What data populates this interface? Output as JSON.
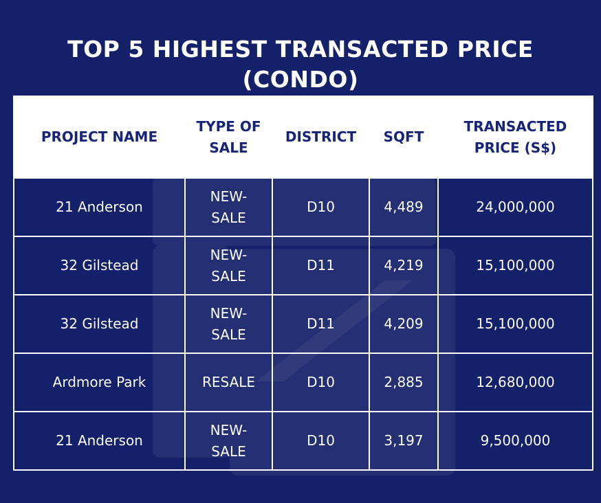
{
  "title": {
    "line1": "TOP 5 HIGHEST TRANSACTED PRICE",
    "line2": "(CONDO)"
  },
  "table": {
    "headers": {
      "project_name": "PROJECT NAME",
      "type_of_sale": "TYPE OF SALE",
      "district": "DISTRICT",
      "sqft": "SQFT",
      "price": "TRANSACTED PRICE (S$)"
    },
    "rows": [
      {
        "project_name": "21 Anderson",
        "type_of_sale": "NEW-SALE",
        "district": "D10",
        "sqft": "4,489",
        "price": "24,000,000"
      },
      {
        "project_name": "32 Gilstead",
        "type_of_sale": "NEW-SALE",
        "district": "D11",
        "sqft": "4,219",
        "price": "15,100,000"
      },
      {
        "project_name": "32 Gilstead",
        "type_of_sale": "NEW-SALE",
        "district": "D11",
        "sqft": "4,209",
        "price": "15,100,000"
      },
      {
        "project_name": "Ardmore Park",
        "type_of_sale": "RESALE",
        "district": "D10",
        "sqft": "2,885",
        "price": "12,680,000"
      },
      {
        "project_name": "21 Anderson",
        "type_of_sale": "NEW-SALE",
        "district": "D10",
        "sqft": "3,197",
        "price": "9,500,000"
      }
    ]
  },
  "colors": {
    "background": "#15206a",
    "header_text": "#18237a",
    "header_bg": "#ffffff",
    "border": "#ffffff"
  }
}
